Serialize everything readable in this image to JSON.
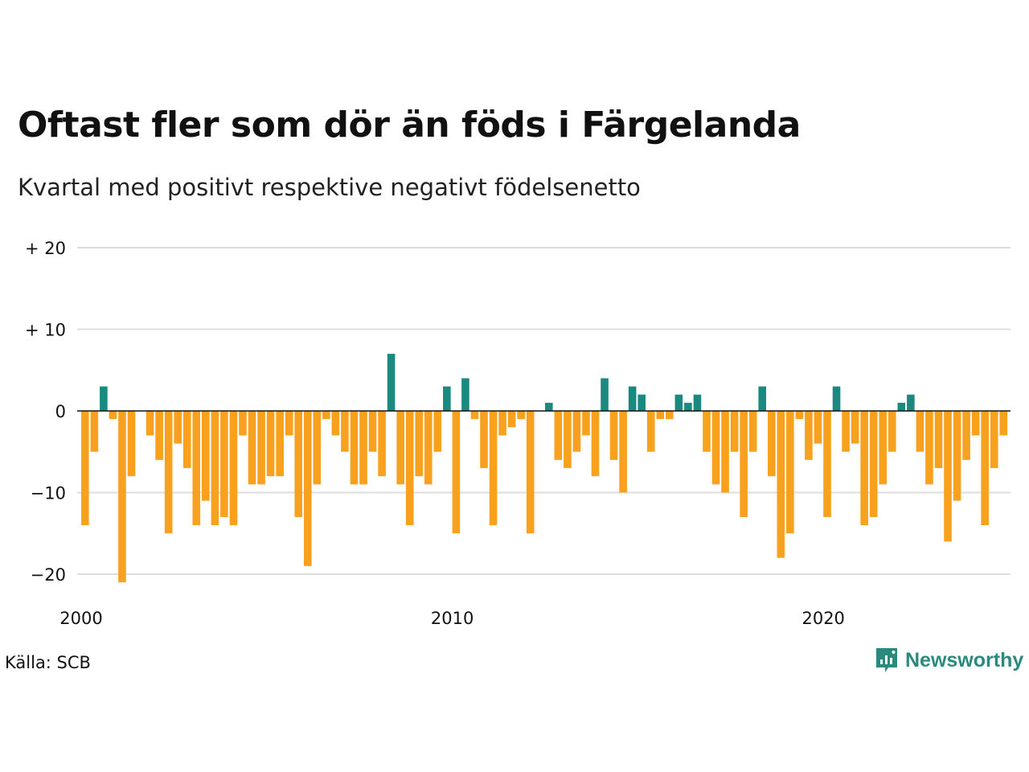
{
  "title": "Oftast fler som dör än föds i Färgelanda",
  "subtitle": "Kvartal med positivt respektive negativt födelsenetto",
  "source": "Källa: SCB",
  "brand": {
    "name": "Newsworthy",
    "icon": "newsworthy-logo-icon",
    "color": "#2a8a7e"
  },
  "colors": {
    "positive": "#1a8a80",
    "negative": "#f7a11e",
    "grid": "#dddddd",
    "zero_line": "#111111"
  },
  "chart_data": {
    "type": "bar",
    "title": "Oftast fler som dör än föds i Färgelanda",
    "subtitle": "Kvartal med positivt respektive negativt födelsenetto",
    "xlabel": "",
    "ylabel": "",
    "ylim": [
      -23,
      20
    ],
    "yticks": [
      {
        "value": 20,
        "label": "+ 20"
      },
      {
        "value": 10,
        "label": "+ 10"
      },
      {
        "value": 0,
        "label": "0"
      },
      {
        "value": -10,
        "label": "−10"
      },
      {
        "value": -20,
        "label": "−20"
      }
    ],
    "xticks": [
      {
        "value": 2000,
        "label": "2000"
      },
      {
        "value": 2010,
        "label": "2010"
      },
      {
        "value": 2020,
        "label": "2020"
      }
    ],
    "x_domain": [
      2000,
      2025.25
    ],
    "grid": true,
    "legend": "none",
    "x_start": "2000-Q1",
    "values": [
      -14,
      -5,
      3,
      -1,
      -21,
      -8,
      0,
      -3,
      -6,
      -15,
      -4,
      -7,
      -14,
      -11,
      -14,
      -13,
      -14,
      -3,
      -9,
      -9,
      -8,
      -8,
      -3,
      -13,
      -19,
      -9,
      -1,
      -3,
      -5,
      -9,
      -9,
      -5,
      -8,
      7,
      -9,
      -14,
      -8,
      -9,
      -5,
      3,
      -15,
      4,
      -1,
      -7,
      -14,
      -3,
      -2,
      -1,
      -15,
      0,
      1,
      -6,
      -7,
      -5,
      -3,
      -8,
      4,
      -6,
      -10,
      3,
      2,
      -5,
      -1,
      -1,
      2,
      1,
      2,
      -5,
      -9,
      -10,
      -5,
      -13,
      -5,
      3,
      -8,
      -18,
      -15,
      -1,
      -6,
      -4,
      -13,
      3,
      -5,
      -4,
      -14,
      -13,
      -9,
      -5,
      1,
      2,
      -5,
      -9,
      -7,
      -16,
      -11,
      -6,
      -3,
      -14,
      -7,
      -3
    ]
  }
}
